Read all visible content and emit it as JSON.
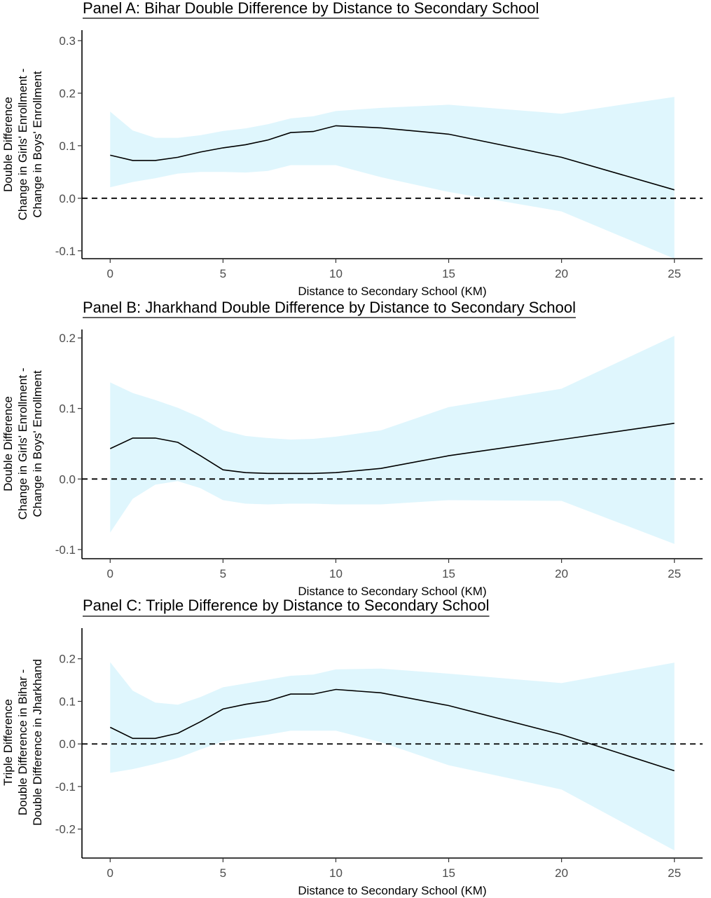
{
  "colors": {
    "ci_band": "#dff6fd",
    "line": "#000000",
    "zero_line": "#000000",
    "tick_text": "#4d4d4d"
  },
  "chart_data": [
    {
      "type": "line",
      "title": "Panel A: Bihar Double Difference by Distance to Secondary School",
      "xlabel": "Distance to Secondary School (KM)",
      "ylabel": [
        "Double Difference",
        "Change in Girls' Enrollment -",
        "Change in Boys' Enrollment"
      ],
      "xlim": [
        -1.25,
        26.25
      ],
      "ylim": [
        -0.115,
        0.32
      ],
      "x_ticks": [
        0,
        5,
        10,
        15,
        20,
        25
      ],
      "y_ticks": [
        -0.1,
        0.0,
        0.1,
        0.2,
        0.3
      ],
      "y_tick_labels": [
        "-0.1",
        "0.0",
        "0.1",
        "0.2",
        "0.3"
      ],
      "reference_line": {
        "y": 0,
        "style": "dashed"
      },
      "grid": false,
      "series": [
        {
          "x": [
            0,
            1,
            2,
            3,
            4,
            5,
            6,
            7,
            8,
            9,
            10,
            12,
            15,
            20,
            25
          ],
          "values": [
            0.082,
            0.072,
            0.072,
            0.078,
            0.088,
            0.096,
            0.102,
            0.111,
            0.125,
            0.127,
            0.138,
            0.134,
            0.122,
            0.078,
            0.016
          ],
          "lower": [
            0.021,
            0.031,
            0.038,
            0.047,
            0.05,
            0.05,
            0.049,
            0.052,
            0.063,
            0.063,
            0.063,
            0.04,
            0.012,
            -0.025,
            -0.12
          ],
          "upper": [
            0.165,
            0.129,
            0.115,
            0.115,
            0.12,
            0.128,
            0.133,
            0.141,
            0.152,
            0.156,
            0.166,
            0.172,
            0.178,
            0.161,
            0.193
          ]
        }
      ]
    },
    {
      "type": "line",
      "title": "Panel B: Jharkhand Double Difference by Distance to Secondary School",
      "xlabel": "Distance to Secondary School (KM)",
      "ylabel": [
        "Double Difference",
        "Change in Girls' Enrollment -",
        "Change in Boys' Enrollment"
      ],
      "xlim": [
        -1.25,
        26.25
      ],
      "ylim": [
        -0.113,
        0.212
      ],
      "x_ticks": [
        0,
        5,
        10,
        15,
        20,
        25
      ],
      "y_ticks": [
        -0.1,
        0.0,
        0.1,
        0.2
      ],
      "y_tick_labels": [
        "-0.1",
        "0.0",
        "0.1",
        "0.2"
      ],
      "reference_line": {
        "y": 0,
        "style": "dashed"
      },
      "grid": false,
      "series": [
        {
          "x": [
            0,
            1,
            2,
            3,
            4,
            5,
            6,
            7,
            8,
            9,
            10,
            12,
            15,
            20,
            25
          ],
          "values": [
            0.043,
            0.058,
            0.058,
            0.052,
            0.033,
            0.013,
            0.009,
            0.008,
            0.008,
            0.008,
            0.009,
            0.015,
            0.033,
            0.056,
            0.079
          ],
          "lower": [
            -0.076,
            -0.028,
            -0.008,
            -0.003,
            -0.013,
            -0.03,
            -0.035,
            -0.036,
            -0.035,
            -0.035,
            -0.036,
            -0.036,
            -0.03,
            -0.031,
            -0.092
          ],
          "upper": [
            0.137,
            0.122,
            0.112,
            0.101,
            0.087,
            0.069,
            0.061,
            0.058,
            0.056,
            0.057,
            0.06,
            0.069,
            0.102,
            0.128,
            0.203
          ]
        }
      ]
    },
    {
      "type": "line",
      "title": "Panel C: Triple Difference by Distance to Secondary School",
      "xlabel": "Distance to Secondary School (KM)",
      "ylabel": [
        "Triple Difference",
        "Double Difference in Bihar -",
        "Double Difference in Jharkhand"
      ],
      "xlim": [
        -1.25,
        26.25
      ],
      "ylim": [
        -0.268,
        0.272
      ],
      "x_ticks": [
        0,
        5,
        10,
        15,
        20,
        25
      ],
      "y_ticks": [
        -0.2,
        -0.1,
        0.0,
        0.1,
        0.2
      ],
      "y_tick_labels": [
        "-0.2",
        "-0.1",
        "0.0",
        "0.1",
        "0.2"
      ],
      "reference_line": {
        "y": 0,
        "style": "dashed"
      },
      "grid": false,
      "series": [
        {
          "x": [
            0,
            1,
            2,
            3,
            4,
            5,
            6,
            7,
            8,
            9,
            10,
            12,
            15,
            20,
            25
          ],
          "values": [
            0.039,
            0.013,
            0.013,
            0.025,
            0.052,
            0.082,
            0.093,
            0.101,
            0.117,
            0.117,
            0.128,
            0.12,
            0.09,
            0.022,
            -0.063
          ],
          "lower": [
            -0.068,
            -0.059,
            -0.047,
            -0.033,
            -0.013,
            0.006,
            0.014,
            0.022,
            0.031,
            0.031,
            0.031,
            0.004,
            -0.05,
            -0.107,
            -0.25
          ],
          "upper": [
            0.192,
            0.125,
            0.097,
            0.092,
            0.11,
            0.133,
            0.142,
            0.151,
            0.16,
            0.163,
            0.175,
            0.177,
            0.165,
            0.143,
            0.191
          ]
        }
      ]
    }
  ]
}
